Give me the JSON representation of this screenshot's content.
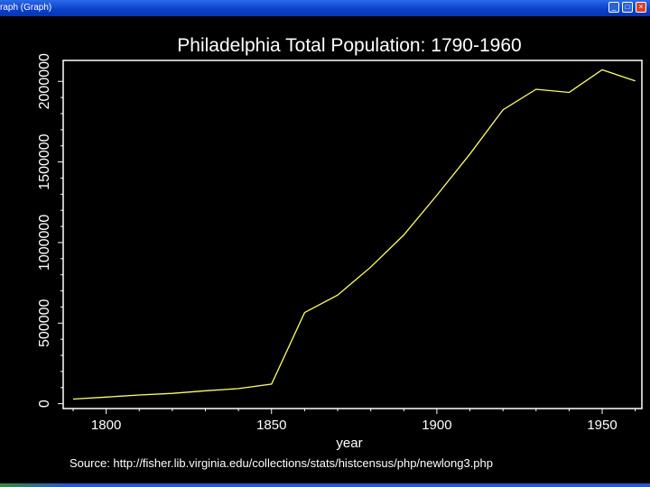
{
  "window": {
    "title": "raph (Graph)",
    "minimize_glyph": "_",
    "maximize_glyph": "□",
    "close_glyph": "×"
  },
  "colors": {
    "background": "#000000",
    "line": "#ffff66",
    "text": "#ffffff"
  },
  "chart_data": {
    "type": "line",
    "title": "Philadelphia Total Population: 1790-1960",
    "xlabel": "year",
    "ylabel": "",
    "source": "Source: http://fisher.lib.virginia.edu/collections/stats/histcensus/php/newlong3.php",
    "xlim": [
      1787,
      1962
    ],
    "ylim": [
      -30000,
      2130000
    ],
    "xticks": [
      1800,
      1850,
      1900,
      1950
    ],
    "yticks": [
      0,
      500000,
      1000000,
      1500000,
      2000000
    ],
    "series": [
      {
        "x": [
          1790,
          1800,
          1810,
          1820,
          1830,
          1840,
          1850,
          1860,
          1870,
          1880,
          1890,
          1900,
          1910,
          1920,
          1930,
          1940,
          1950,
          1960
        ],
        "y": [
          28522,
          41220,
          53722,
          63802,
          80462,
          93665,
          121376,
          565529,
          674022,
          847170,
          1046964,
          1293697,
          1549008,
          1823779,
          1950961,
          1931334,
          2071605,
          2002512
        ]
      }
    ]
  }
}
